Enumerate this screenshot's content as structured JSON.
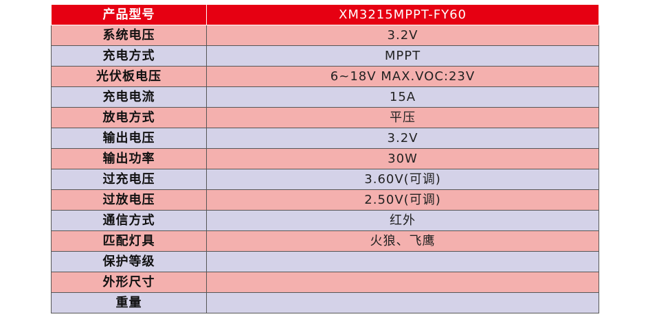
{
  "colors": {
    "header_bg": "#e60012",
    "header_text": "#ffffff",
    "row_pink": "#f4b0ae",
    "row_lilac": "#d4d2e8"
  },
  "header": {
    "label": "产品型号",
    "value": "XM3215MPPT-FY60"
  },
  "rows": [
    {
      "label": "系统电压",
      "value": "3.2V"
    },
    {
      "label": "充电方式",
      "value": "MPPT"
    },
    {
      "label": "光伏板电压",
      "value": "6~18V  MAX.VOC:23V"
    },
    {
      "label": "充电电流",
      "value": "15A"
    },
    {
      "label": "放电方式",
      "value": "平压"
    },
    {
      "label": "输出电压",
      "value": "3.2V"
    },
    {
      "label": "输出功率",
      "value": "30W"
    },
    {
      "label": "过充电压",
      "value": "3.60V(可调)"
    },
    {
      "label": "过放电压",
      "value": "2.50V(可调)"
    },
    {
      "label": "通信方式",
      "value": "红外"
    },
    {
      "label": "匹配灯具",
      "value": "火狼、飞鹰"
    },
    {
      "label": "保护等级",
      "value": ""
    },
    {
      "label": "外形尺寸",
      "value": ""
    },
    {
      "label": "重量",
      "value": ""
    }
  ]
}
